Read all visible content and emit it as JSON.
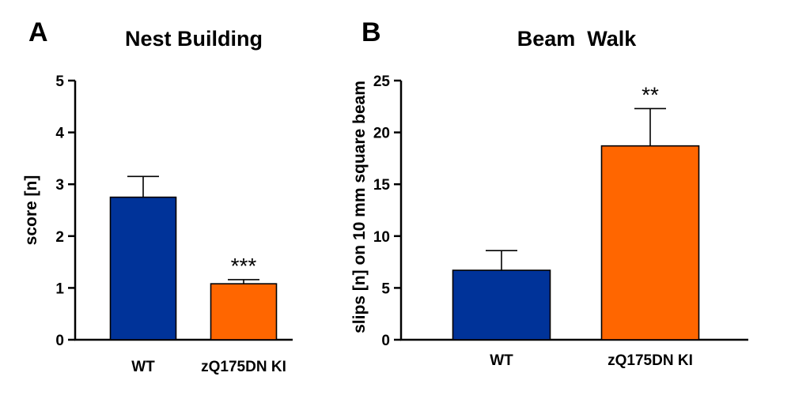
{
  "chart_data": [
    {
      "panel": "A",
      "type": "bar",
      "title": "Nest Building",
      "xlabel": "",
      "ylabel": "score [n]",
      "ylim": [
        0,
        5
      ],
      "yticks": [
        0,
        1,
        2,
        3,
        4,
        5
      ],
      "categories": [
        "WT",
        "zQ175DN KI"
      ],
      "values": [
        2.75,
        1.08
      ],
      "errors": [
        0.4,
        0.08
      ],
      "colors": [
        "#003399",
        "#FF6600"
      ],
      "annotations": [
        "",
        "***"
      ]
    },
    {
      "panel": "B",
      "type": "bar",
      "title": "Beam  Walk",
      "xlabel": "",
      "ylabel": "slips [n] on 10 mm square beam",
      "ylim": [
        0,
        25
      ],
      "yticks": [
        0,
        5,
        10,
        15,
        20,
        25
      ],
      "categories": [
        "WT",
        "zQ175DN KI"
      ],
      "values": [
        6.7,
        18.7
      ],
      "errors": [
        1.9,
        3.6
      ],
      "colors": [
        "#003399",
        "#FF6600"
      ],
      "annotations": [
        "",
        "**"
      ]
    }
  ]
}
